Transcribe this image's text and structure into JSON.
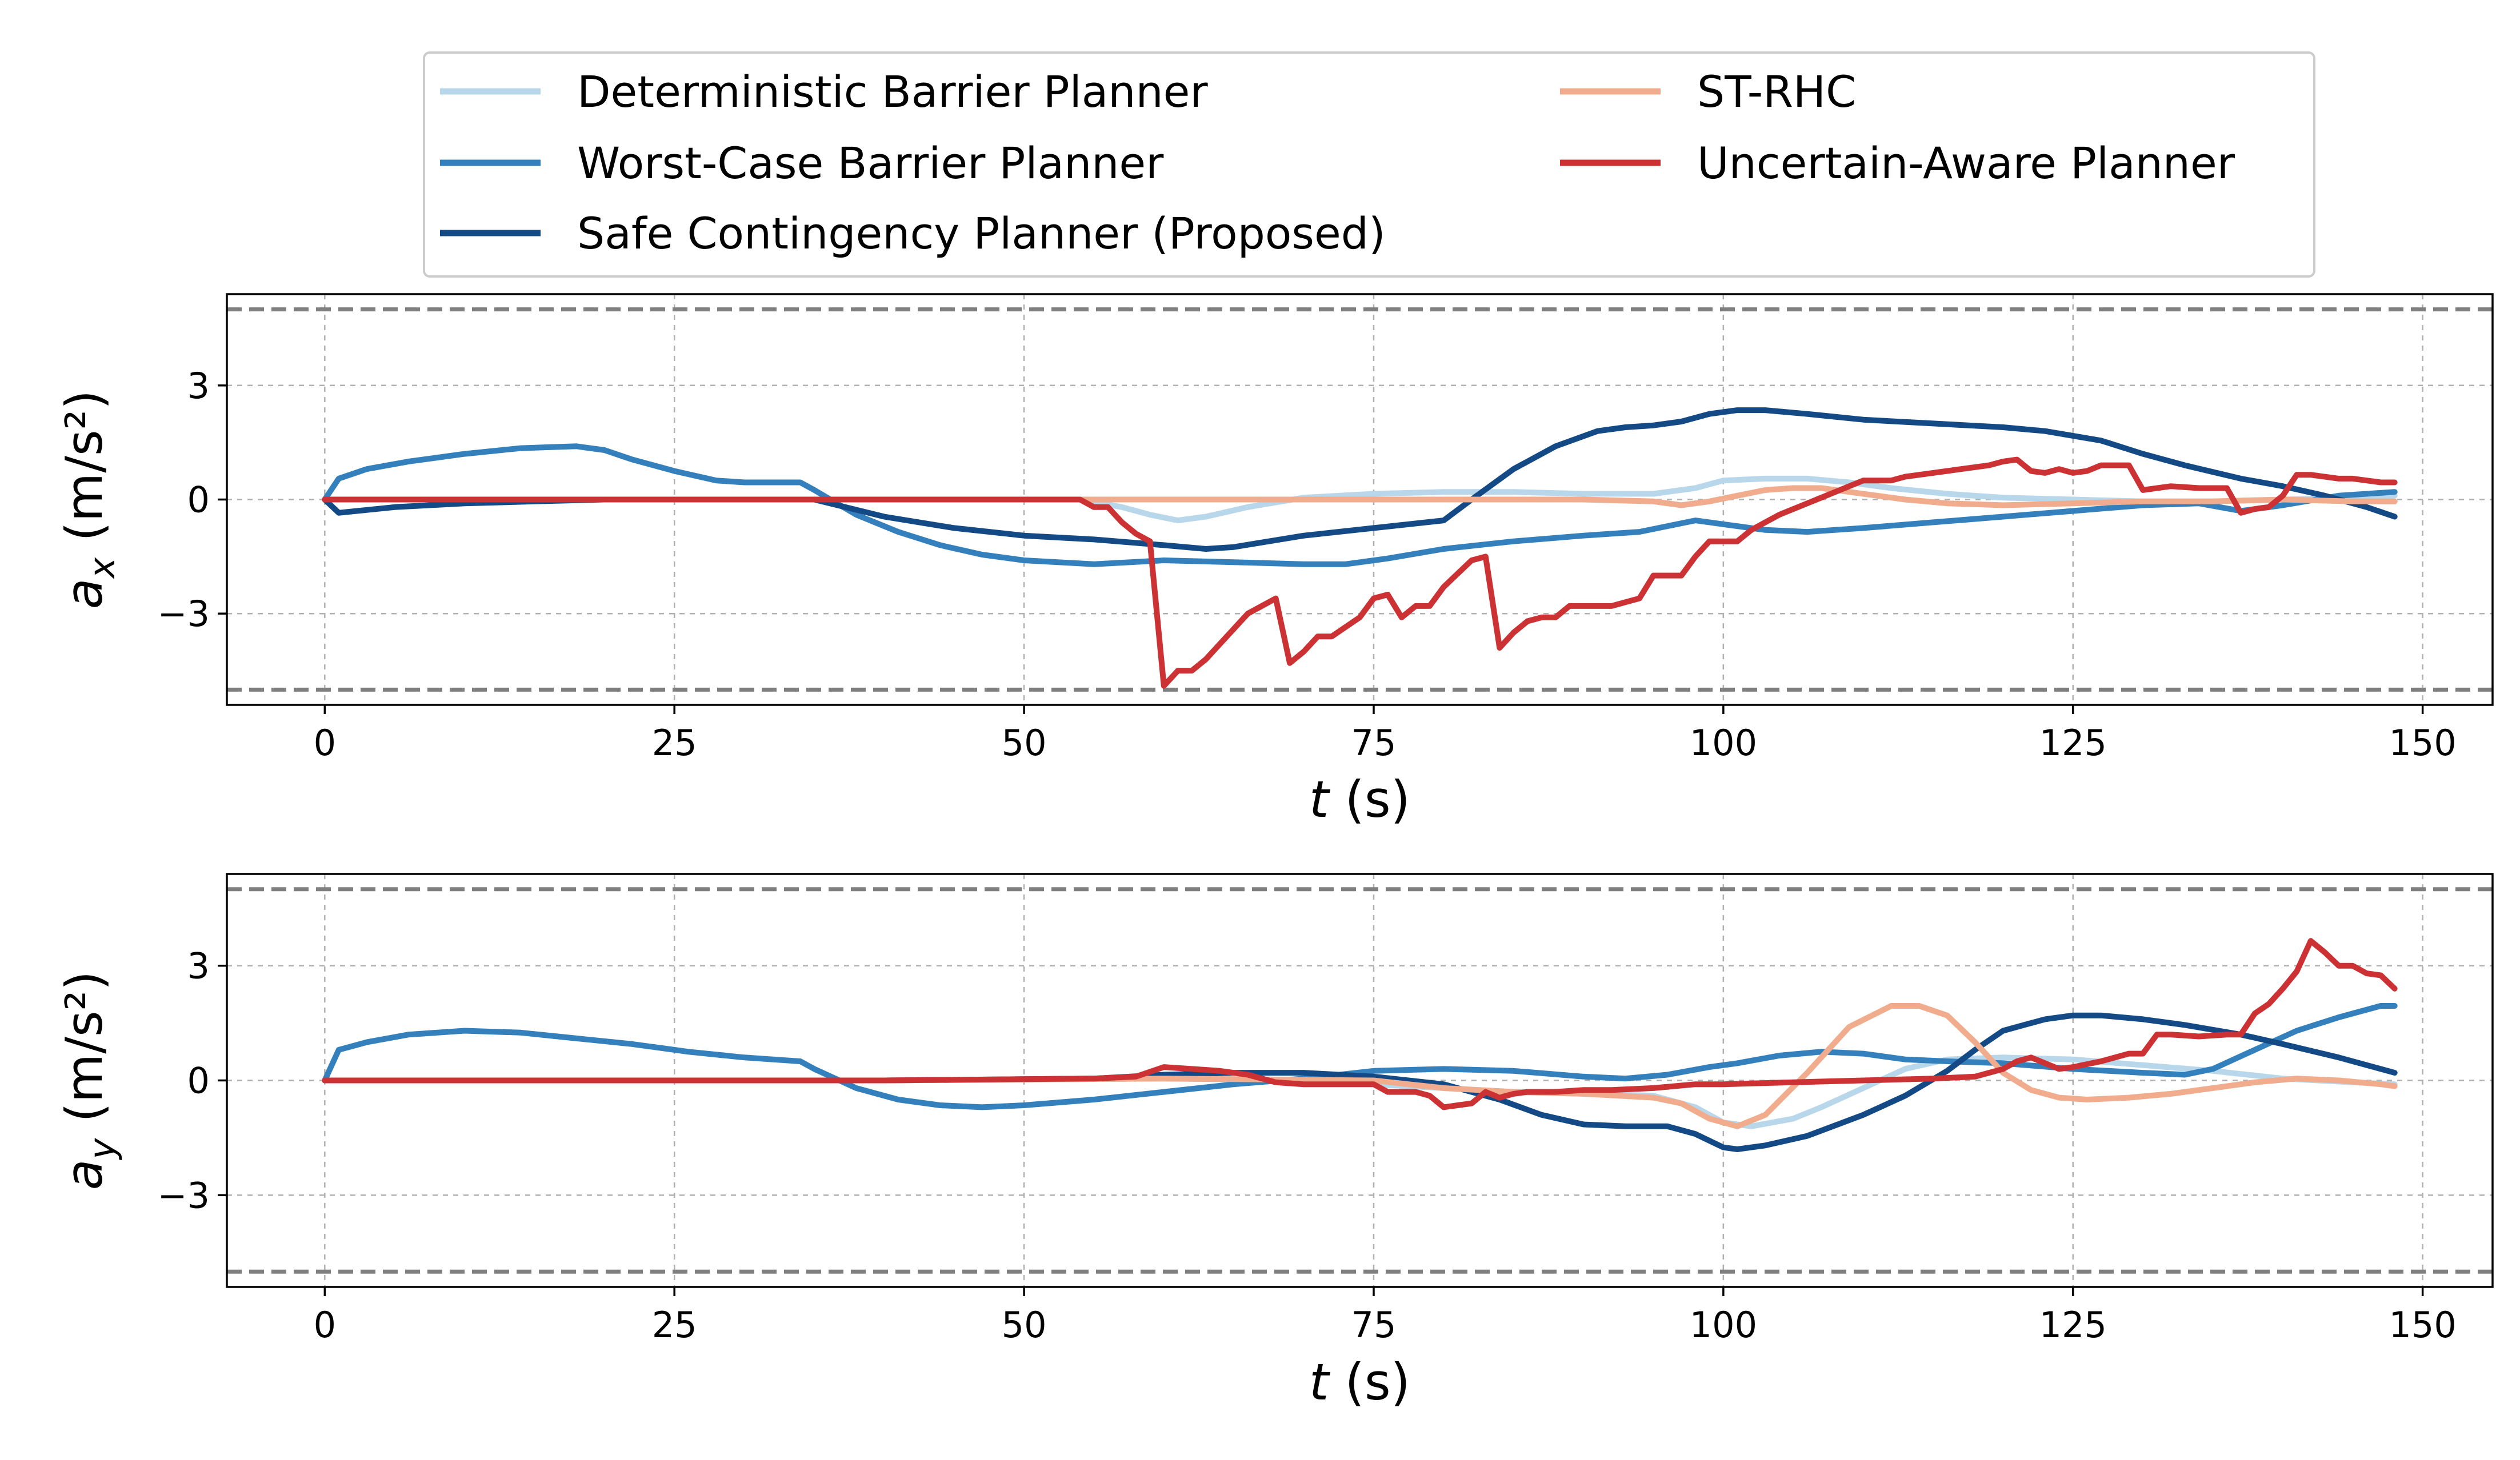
{
  "colors": {
    "deterministic": "#b9d7ea",
    "worst_case": "#3480bc",
    "safe_contingency": "#134a86",
    "st_rhc": "#f1ab8d",
    "uncertain": "#cc3234",
    "bound": "#7f7f7f",
    "grid": "#b0b0b0"
  },
  "legend": {
    "items": [
      {
        "key": "deterministic",
        "label": "Deterministic Barrier Planner"
      },
      {
        "key": "worst_case",
        "label": "Worst-Case Barrier Planner"
      },
      {
        "key": "safe_contingency",
        "label": "Safe Contingency Planner (Proposed)"
      },
      {
        "key": "st_rhc",
        "label": "ST-RHC"
      },
      {
        "key": "uncertain",
        "label": "Uncertain-Aware Planner"
      }
    ]
  },
  "chart_data": [
    {
      "type": "line",
      "id": "ax",
      "ylabel_main": "a",
      "ylabel_sub": "x",
      "ylabel_unit": " (m/s²)",
      "xlabel_var": "t",
      "xlabel_unit": " (s)",
      "xlim": [
        -7,
        155
      ],
      "ylim": [
        -5.4,
        5.4
      ],
      "xticks": [
        0,
        25,
        50,
        75,
        100,
        125,
        150
      ],
      "yticks": [
        -3,
        0,
        3
      ],
      "ytick_labels": [
        "−3",
        "0",
        "3"
      ],
      "bounds": [
        5,
        -5
      ],
      "grid": true,
      "series": [
        {
          "key": "deterministic",
          "x": [
            0,
            54,
            57,
            59,
            61,
            63,
            66,
            70,
            75,
            80,
            85,
            90,
            95,
            98,
            100,
            103,
            106,
            109,
            112,
            116,
            120,
            125,
            130,
            135,
            140,
            145,
            148
          ],
          "y": [
            0,
            0,
            -0.2,
            -0.4,
            -0.55,
            -0.45,
            -0.2,
            0.05,
            0.15,
            0.2,
            0.2,
            0.15,
            0.15,
            0.3,
            0.5,
            0.55,
            0.55,
            0.45,
            0.3,
            0.15,
            0.05,
            0,
            -0.05,
            -0.05,
            0,
            0.05,
            0.1
          ]
        },
        {
          "key": "worst_case",
          "x": [
            0,
            1,
            3,
            6,
            10,
            14,
            18,
            20,
            22,
            25,
            28,
            30,
            34,
            35,
            38,
            41,
            44,
            47,
            50,
            55,
            60,
            65,
            70,
            73,
            76,
            80,
            85,
            90,
            94,
            96,
            98,
            100,
            103,
            106,
            110,
            115,
            120,
            125,
            130,
            134,
            137,
            140,
            144,
            148
          ],
          "y": [
            0,
            0.55,
            0.8,
            1.0,
            1.2,
            1.35,
            1.4,
            1.3,
            1.05,
            0.75,
            0.5,
            0.45,
            0.45,
            0.25,
            -0.4,
            -0.85,
            -1.2,
            -1.45,
            -1.6,
            -1.7,
            -1.6,
            -1.65,
            -1.7,
            -1.7,
            -1.55,
            -1.3,
            -1.1,
            -0.95,
            -0.85,
            -0.7,
            -0.55,
            -0.65,
            -0.8,
            -0.85,
            -0.75,
            -0.6,
            -0.45,
            -0.3,
            -0.15,
            -0.1,
            -0.3,
            -0.15,
            0.1,
            0.2
          ]
        },
        {
          "key": "safe_contingency",
          "x": [
            0,
            1,
            5,
            10,
            15,
            20,
            25,
            30,
            35,
            40,
            45,
            50,
            55,
            60,
            63,
            65,
            70,
            75,
            80,
            82,
            85,
            88,
            91,
            93,
            95,
            97,
            99,
            101,
            103,
            106,
            110,
            115,
            120,
            123,
            127,
            130,
            133,
            137,
            140,
            143,
            146,
            148
          ],
          "y": [
            0,
            -0.35,
            -0.2,
            -0.1,
            -0.05,
            0,
            0,
            0,
            0,
            -0.45,
            -0.75,
            -0.95,
            -1.05,
            -1.2,
            -1.3,
            -1.25,
            -0.95,
            -0.75,
            -0.55,
            0,
            0.8,
            1.4,
            1.8,
            1.9,
            1.95,
            2.05,
            2.25,
            2.35,
            2.35,
            2.25,
            2.1,
            2.0,
            1.9,
            1.8,
            1.55,
            1.2,
            0.9,
            0.55,
            0.35,
            0.1,
            -0.2,
            -0.45
          ]
        },
        {
          "key": "st_rhc",
          "x": [
            0,
            20,
            40,
            60,
            80,
            90,
            95,
            97,
            99,
            101,
            103,
            105,
            107,
            109,
            111,
            113,
            116,
            120,
            125,
            130,
            135,
            140,
            145,
            148
          ],
          "y": [
            0,
            0,
            0,
            0,
            0,
            0,
            -0.05,
            -0.15,
            -0.05,
            0.1,
            0.25,
            0.3,
            0.3,
            0.2,
            0.1,
            0,
            -0.1,
            -0.15,
            -0.1,
            -0.05,
            -0.05,
            0,
            -0.05,
            -0.05
          ]
        },
        {
          "key": "uncertain",
          "x": [
            0,
            54,
            55,
            56,
            57,
            58,
            59,
            60,
            61,
            62,
            63,
            64,
            66,
            68,
            69,
            70,
            71,
            72,
            74,
            75,
            76,
            77,
            78,
            79,
            80,
            82,
            83,
            84,
            85,
            86,
            87,
            88,
            89,
            90,
            91,
            92,
            94,
            95,
            96,
            97,
            98,
            99,
            100,
            101,
            102,
            103,
            104,
            106,
            108,
            110,
            112,
            113,
            115,
            117,
            119,
            120,
            121,
            122,
            123,
            124,
            125,
            126,
            127,
            128,
            129,
            130,
            132,
            134,
            135,
            136,
            137,
            138,
            139,
            140,
            141,
            142,
            143,
            144,
            145,
            146,
            147,
            148
          ],
          "y": [
            0,
            0,
            -0.2,
            -0.2,
            -0.6,
            -0.9,
            -1.1,
            -4.9,
            -4.5,
            -4.5,
            -4.2,
            -3.8,
            -3.0,
            -2.6,
            -4.3,
            -4.0,
            -3.6,
            -3.6,
            -3.1,
            -2.6,
            -2.5,
            -3.1,
            -2.8,
            -2.8,
            -2.3,
            -1.6,
            -1.5,
            -3.9,
            -3.5,
            -3.2,
            -3.1,
            -3.1,
            -2.8,
            -2.8,
            -2.8,
            -2.8,
            -2.6,
            -2.0,
            -2.0,
            -2.0,
            -1.5,
            -1.1,
            -1.1,
            -1.1,
            -0.8,
            -0.6,
            -0.4,
            -0.1,
            0.2,
            0.5,
            0.5,
            0.6,
            0.7,
            0.8,
            0.9,
            1.0,
            1.05,
            0.75,
            0.7,
            0.8,
            0.7,
            0.75,
            0.9,
            0.9,
            0.9,
            0.25,
            0.35,
            0.3,
            0.3,
            0.3,
            -0.35,
            -0.25,
            -0.2,
            0.1,
            0.65,
            0.65,
            0.6,
            0.55,
            0.55,
            0.5,
            0.45,
            0.45
          ]
        }
      ]
    },
    {
      "type": "line",
      "id": "ay",
      "ylabel_main": "a",
      "ylabel_sub": "y",
      "ylabel_unit": " (m/s²)",
      "xlabel_var": "t",
      "xlabel_unit": " (s)",
      "xlim": [
        -7,
        155
      ],
      "ylim": [
        -5.4,
        5.4
      ],
      "xticks": [
        0,
        25,
        50,
        75,
        100,
        125,
        150
      ],
      "yticks": [
        -3,
        0,
        3
      ],
      "ytick_labels": [
        "−3",
        "0",
        "3"
      ],
      "bounds": [
        5,
        -5
      ],
      "grid": true,
      "series": [
        {
          "key": "deterministic",
          "x": [
            0,
            20,
            40,
            60,
            70,
            75,
            80,
            85,
            90,
            95,
            98,
            100,
            102,
            105,
            107,
            110,
            113,
            116,
            120,
            125,
            130,
            135,
            140,
            145,
            148
          ],
          "y": [
            0,
            0,
            0,
            0.05,
            0,
            -0.1,
            -0.2,
            -0.3,
            -0.35,
            -0.4,
            -0.7,
            -1.1,
            -1.2,
            -1.0,
            -0.7,
            -0.2,
            0.3,
            0.55,
            0.6,
            0.55,
            0.4,
            0.25,
            0.05,
            -0.05,
            -0.1
          ]
        },
        {
          "key": "worst_case",
          "x": [
            0,
            1,
            3,
            6,
            10,
            14,
            18,
            22,
            26,
            30,
            34,
            35,
            38,
            41,
            44,
            47,
            50,
            55,
            60,
            65,
            70,
            75,
            80,
            85,
            90,
            93,
            96,
            99,
            101,
            104,
            107,
            110,
            113,
            116,
            120,
            125,
            130,
            133,
            135,
            138,
            141,
            144,
            147,
            148
          ],
          "y": [
            0,
            0.8,
            1.0,
            1.2,
            1.3,
            1.25,
            1.1,
            0.95,
            0.75,
            0.6,
            0.5,
            0.3,
            -0.2,
            -0.5,
            -0.65,
            -0.7,
            -0.65,
            -0.5,
            -0.3,
            -0.1,
            0.05,
            0.25,
            0.3,
            0.25,
            0.1,
            0.05,
            0.15,
            0.35,
            0.45,
            0.65,
            0.75,
            0.7,
            0.55,
            0.5,
            0.45,
            0.3,
            0.2,
            0.15,
            0.3,
            0.8,
            1.3,
            1.65,
            1.95,
            1.95
          ]
        },
        {
          "key": "safe_contingency",
          "x": [
            0,
            20,
            40,
            55,
            60,
            65,
            70,
            75,
            80,
            84,
            87,
            90,
            93,
            96,
            98,
            100,
            101,
            103,
            106,
            110,
            113,
            116,
            118,
            120,
            123,
            125,
            127,
            130,
            133,
            137,
            140,
            144,
            148
          ],
          "y": [
            0,
            0,
            0,
            0.05,
            0.15,
            0.2,
            0.2,
            0.1,
            -0.1,
            -0.5,
            -0.9,
            -1.15,
            -1.2,
            -1.2,
            -1.4,
            -1.75,
            -1.8,
            -1.7,
            -1.45,
            -0.9,
            -0.4,
            0.25,
            0.8,
            1.3,
            1.6,
            1.7,
            1.7,
            1.6,
            1.45,
            1.2,
            0.95,
            0.6,
            0.2
          ]
        },
        {
          "key": "st_rhc",
          "x": [
            0,
            20,
            40,
            60,
            75,
            80,
            85,
            90,
            95,
            97,
            99,
            101,
            103,
            106,
            109,
            112,
            114,
            116,
            118,
            120,
            122,
            124,
            126,
            129,
            132,
            135,
            138,
            141,
            144,
            147,
            148
          ],
          "y": [
            0,
            0,
            0,
            0.05,
            0,
            -0.2,
            -0.3,
            -0.35,
            -0.45,
            -0.6,
            -1.0,
            -1.2,
            -0.9,
            0.2,
            1.4,
            1.95,
            1.95,
            1.7,
            1.0,
            0.2,
            -0.25,
            -0.45,
            -0.5,
            -0.45,
            -0.35,
            -0.2,
            -0.05,
            0.05,
            0,
            -0.1,
            -0.15
          ]
        },
        {
          "key": "uncertain",
          "x": [
            0,
            20,
            40,
            55,
            58,
            60,
            62,
            64,
            66,
            68,
            70,
            72,
            75,
            76,
            78,
            79,
            80,
            81,
            82,
            83,
            84,
            85,
            86,
            88,
            90,
            92,
            95,
            98,
            100,
            105,
            110,
            115,
            118,
            120,
            121,
            122,
            123,
            124,
            125,
            127,
            129,
            130,
            131,
            132,
            134,
            136,
            137,
            138,
            139,
            140,
            141,
            142,
            143,
            144,
            145,
            146,
            147,
            148
          ],
          "y": [
            0,
            0,
            0,
            0.05,
            0.1,
            0.35,
            0.3,
            0.25,
            0.15,
            -0.05,
            -0.1,
            -0.1,
            -0.1,
            -0.3,
            -0.3,
            -0.4,
            -0.7,
            -0.65,
            -0.6,
            -0.3,
            -0.45,
            -0.35,
            -0.3,
            -0.3,
            -0.25,
            -0.25,
            -0.2,
            -0.1,
            -0.1,
            -0.05,
            0,
            0.05,
            0.1,
            0.3,
            0.5,
            0.6,
            0.45,
            0.3,
            0.35,
            0.5,
            0.7,
            0.7,
            1.2,
            1.2,
            1.15,
            1.2,
            1.2,
            1.75,
            2.0,
            2.4,
            2.85,
            3.65,
            3.35,
            3.0,
            3.0,
            2.8,
            2.75,
            2.4
          ]
        }
      ]
    }
  ]
}
